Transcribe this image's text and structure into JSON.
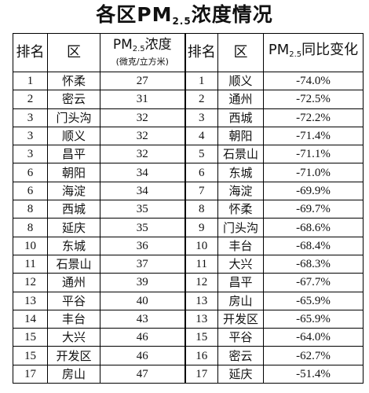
{
  "title": {
    "main": "各区PM",
    "sub": "2.5",
    "tail": "浓度情况"
  },
  "left_headers": {
    "rank": "排名",
    "district": "区",
    "conc_main": "PM",
    "conc_sub": "2.5",
    "conc_tail": "浓度",
    "conc_unit": "(微克/立方米)"
  },
  "right_headers": {
    "rank": "排名",
    "district": "区",
    "change_main": "PM",
    "change_sub": "2.5",
    "change_tail": "同比变化"
  },
  "rows": [
    {
      "lr": "1",
      "ld": "怀柔",
      "lv": "27",
      "rr": "1",
      "rd": "顺义",
      "rv": "-74.0%"
    },
    {
      "lr": "2",
      "ld": "密云",
      "lv": "31",
      "rr": "2",
      "rd": "通州",
      "rv": "-72.5%"
    },
    {
      "lr": "3",
      "ld": "门头沟",
      "lv": "32",
      "rr": "3",
      "rd": "西城",
      "rv": "-72.2%"
    },
    {
      "lr": "3",
      "ld": "顺义",
      "lv": "32",
      "rr": "4",
      "rd": "朝阳",
      "rv": "-71.4%"
    },
    {
      "lr": "3",
      "ld": "昌平",
      "lv": "32",
      "rr": "5",
      "rd": "石景山",
      "rv": "-71.1%"
    },
    {
      "lr": "6",
      "ld": "朝阳",
      "lv": "34",
      "rr": "6",
      "rd": "东城",
      "rv": "-71.0%"
    },
    {
      "lr": "6",
      "ld": "海淀",
      "lv": "34",
      "rr": "7",
      "rd": "海淀",
      "rv": "-69.9%"
    },
    {
      "lr": "8",
      "ld": "西城",
      "lv": "35",
      "rr": "8",
      "rd": "怀柔",
      "rv": "-69.7%"
    },
    {
      "lr": "8",
      "ld": "延庆",
      "lv": "35",
      "rr": "9",
      "rd": "门头沟",
      "rv": "-68.6%"
    },
    {
      "lr": "10",
      "ld": "东城",
      "lv": "36",
      "rr": "10",
      "rd": "丰台",
      "rv": "-68.4%"
    },
    {
      "lr": "11",
      "ld": "石景山",
      "lv": "37",
      "rr": "11",
      "rd": "大兴",
      "rv": "-68.3%"
    },
    {
      "lr": "12",
      "ld": "通州",
      "lv": "39",
      "rr": "12",
      "rd": "昌平",
      "rv": "-67.7%"
    },
    {
      "lr": "13",
      "ld": "平谷",
      "lv": "40",
      "rr": "13",
      "rd": "房山",
      "rv": "-65.9%"
    },
    {
      "lr": "14",
      "ld": "丰台",
      "lv": "43",
      "rr": "13",
      "rd": "开发区",
      "rv": "-65.9%"
    },
    {
      "lr": "15",
      "ld": "大兴",
      "lv": "46",
      "rr": "15",
      "rd": "平谷",
      "rv": "-64.0%"
    },
    {
      "lr": "15",
      "ld": "开发区",
      "lv": "46",
      "rr": "16",
      "rd": "密云",
      "rv": "-62.7%"
    },
    {
      "lr": "17",
      "ld": "房山",
      "lv": "47",
      "rr": "17",
      "rd": "延庆",
      "rv": "-51.4%"
    }
  ]
}
